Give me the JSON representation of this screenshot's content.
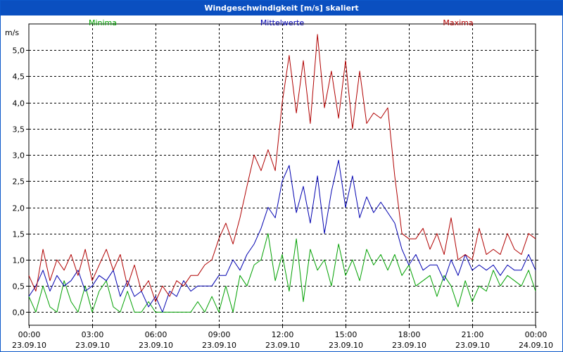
{
  "window": {
    "title": "Windgeschwindigkeit [m/s] skaliert"
  },
  "chart_data": {
    "type": "line",
    "title": "Windgeschwindigkeit [m/s] skaliert",
    "ylabel": "m/s",
    "xlabel": "",
    "ylim": [
      -0.25,
      5.5
    ],
    "xlim": [
      0,
      24
    ],
    "x_unit": "hours since 23.09.10 00:00",
    "grid": true,
    "y_ticks": [
      {
        "value": 0.0,
        "label": "0,0"
      },
      {
        "value": 0.5,
        "label": "0,5"
      },
      {
        "value": 1.0,
        "label": "1,0"
      },
      {
        "value": 1.5,
        "label": "1,5"
      },
      {
        "value": 2.0,
        "label": "2,0"
      },
      {
        "value": 2.5,
        "label": "2,5"
      },
      {
        "value": 3.0,
        "label": "3,0"
      },
      {
        "value": 3.5,
        "label": "3,5"
      },
      {
        "value": 4.0,
        "label": "4,0"
      },
      {
        "value": 4.5,
        "label": "4,5"
      },
      {
        "value": 5.0,
        "label": "5,0"
      }
    ],
    "x_ticks": [
      {
        "value": 0,
        "time": "00:00",
        "date": "23.09.10"
      },
      {
        "value": 3,
        "time": "03:00",
        "date": "23.09.10"
      },
      {
        "value": 6,
        "time": "06:00",
        "date": "23.09.10"
      },
      {
        "value": 9,
        "time": "09:00",
        "date": "23.09.10"
      },
      {
        "value": 12,
        "time": "12:00",
        "date": "23.09.10"
      },
      {
        "value": 15,
        "time": "15:00",
        "date": "23.09.10"
      },
      {
        "value": 18,
        "time": "18:00",
        "date": "23.09.10"
      },
      {
        "value": 21,
        "time": "21:00",
        "date": "23.09.10"
      },
      {
        "value": 24,
        "time": "00:00",
        "date": "24.09.10"
      }
    ],
    "legend_position": "top",
    "series": [
      {
        "name": "Minima",
        "color": "#00a000",
        "x": [
          0,
          0.33,
          0.67,
          1,
          1.33,
          1.67,
          2,
          2.33,
          2.67,
          3,
          3.33,
          3.67,
          4,
          4.33,
          4.67,
          5,
          5.33,
          5.67,
          6,
          6.33,
          6.67,
          7,
          7.33,
          7.67,
          8,
          8.33,
          8.67,
          9,
          9.33,
          9.67,
          10,
          10.33,
          10.67,
          11,
          11.33,
          11.67,
          12,
          12.33,
          12.67,
          13,
          13.33,
          13.67,
          14,
          14.33,
          14.67,
          15,
          15.33,
          15.67,
          16,
          16.33,
          16.67,
          17,
          17.33,
          17.67,
          18,
          18.33,
          18.67,
          19,
          19.33,
          19.67,
          20,
          20.33,
          20.67,
          21,
          21.33,
          21.67,
          22,
          22.33,
          22.67,
          23,
          23.33,
          23.67,
          24
        ],
        "values": [
          0.3,
          0.0,
          0.5,
          0.1,
          0.0,
          0.6,
          0.2,
          0.0,
          0.5,
          0.0,
          0.4,
          0.6,
          0.1,
          0.0,
          0.4,
          0.0,
          0.0,
          0.2,
          0.0,
          0.0,
          0.0,
          0.0,
          0.0,
          0.0,
          0.2,
          0.0,
          0.3,
          0.0,
          0.5,
          0.0,
          0.7,
          0.5,
          0.9,
          1.0,
          1.5,
          0.6,
          1.1,
          0.4,
          1.4,
          0.2,
          1.2,
          0.8,
          1.0,
          0.5,
          1.3,
          0.7,
          1.0,
          0.6,
          1.2,
          0.9,
          1.1,
          0.8,
          1.1,
          0.7,
          0.9,
          0.5,
          0.6,
          0.7,
          0.3,
          0.7,
          0.5,
          0.1,
          0.6,
          0.2,
          0.5,
          0.4,
          0.8,
          0.5,
          0.7,
          0.6,
          0.5,
          0.8,
          0.4
        ]
      },
      {
        "name": "Mittelwerte",
        "color": "#0000b0",
        "x": [
          0,
          0.33,
          0.67,
          1,
          1.33,
          1.67,
          2,
          2.33,
          2.67,
          3,
          3.33,
          3.67,
          4,
          4.33,
          4.67,
          5,
          5.33,
          5.67,
          6,
          6.33,
          6.67,
          7,
          7.33,
          7.67,
          8,
          8.33,
          8.67,
          9,
          9.33,
          9.67,
          10,
          10.33,
          10.67,
          11,
          11.33,
          11.67,
          12,
          12.33,
          12.67,
          13,
          13.33,
          13.67,
          14,
          14.33,
          14.67,
          15,
          15.33,
          15.67,
          16,
          16.33,
          16.67,
          17,
          17.33,
          17.67,
          18,
          18.33,
          18.67,
          19,
          19.33,
          19.67,
          20,
          20.33,
          20.67,
          21,
          21.33,
          21.67,
          22,
          22.33,
          22.67,
          23,
          23.33,
          23.67,
          24
        ],
        "values": [
          0.3,
          0.5,
          0.8,
          0.4,
          0.7,
          0.5,
          0.6,
          0.8,
          0.4,
          0.5,
          0.7,
          0.6,
          0.8,
          0.3,
          0.6,
          0.3,
          0.4,
          0.1,
          0.3,
          0.0,
          0.4,
          0.3,
          0.6,
          0.4,
          0.5,
          0.5,
          0.5,
          0.7,
          0.7,
          1.0,
          0.8,
          1.1,
          1.3,
          1.6,
          2.0,
          1.8,
          2.5,
          2.8,
          1.9,
          2.4,
          1.7,
          2.6,
          1.5,
          2.3,
          2.9,
          2.0,
          2.6,
          1.8,
          2.2,
          1.9,
          2.1,
          1.9,
          1.7,
          1.2,
          0.9,
          1.1,
          0.8,
          0.9,
          0.9,
          0.6,
          1.0,
          0.7,
          1.1,
          0.8,
          0.9,
          0.8,
          0.9,
          0.7,
          0.9,
          0.8,
          0.8,
          1.1,
          0.8
        ]
      },
      {
        "name": "Maxima",
        "color": "#b00000",
        "x": [
          0,
          0.33,
          0.67,
          1,
          1.33,
          1.67,
          2,
          2.33,
          2.67,
          3,
          3.33,
          3.67,
          4,
          4.33,
          4.67,
          5,
          5.33,
          5.67,
          6,
          6.33,
          6.67,
          7,
          7.33,
          7.67,
          8,
          8.33,
          8.67,
          9,
          9.33,
          9.67,
          10,
          10.33,
          10.67,
          11,
          11.33,
          11.67,
          12,
          12.33,
          12.67,
          13,
          13.33,
          13.67,
          14,
          14.33,
          14.67,
          15,
          15.33,
          15.67,
          16,
          16.33,
          16.67,
          17,
          17.33,
          17.67,
          18,
          18.33,
          18.67,
          19,
          19.33,
          19.67,
          20,
          20.33,
          20.67,
          21,
          21.33,
          21.67,
          22,
          22.33,
          22.67,
          23,
          23.33,
          23.67,
          24
        ],
        "values": [
          0.7,
          0.4,
          1.2,
          0.6,
          1.0,
          0.8,
          1.1,
          0.7,
          1.2,
          0.6,
          0.9,
          1.2,
          0.8,
          1.1,
          0.5,
          0.9,
          0.4,
          0.6,
          0.2,
          0.5,
          0.3,
          0.6,
          0.5,
          0.7,
          0.7,
          0.9,
          1.0,
          1.4,
          1.7,
          1.3,
          1.8,
          2.4,
          3.0,
          2.7,
          3.1,
          2.7,
          4.0,
          4.9,
          3.8,
          4.8,
          3.6,
          5.3,
          3.9,
          4.6,
          3.7,
          4.8,
          3.5,
          4.6,
          3.6,
          3.8,
          3.7,
          3.9,
          2.6,
          1.5,
          1.4,
          1.4,
          1.6,
          1.2,
          1.5,
          1.1,
          1.8,
          1.0,
          1.1,
          1.0,
          1.6,
          1.1,
          1.2,
          1.1,
          1.5,
          1.2,
          1.1,
          1.5,
          1.4
        ]
      }
    ]
  }
}
